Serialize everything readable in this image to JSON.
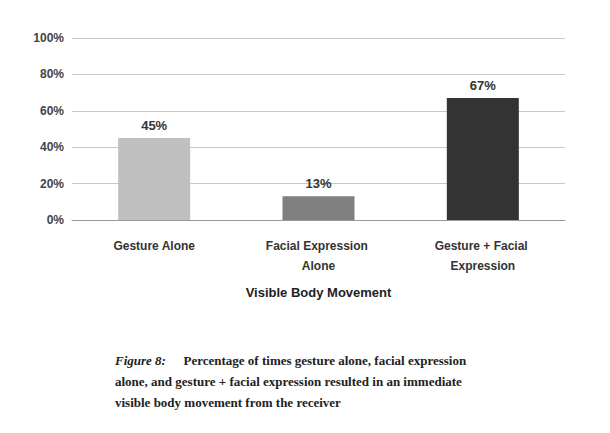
{
  "chart_data": {
    "type": "bar",
    "categories": [
      "Gesture Alone",
      "Facial Expression Alone",
      "Gesture + Facial Expression"
    ],
    "values": [
      45,
      13,
      67
    ],
    "value_labels": [
      "45%",
      "13%",
      "67%"
    ],
    "colors": [
      "#c0c0c0",
      "#808080",
      "#333333"
    ],
    "x_label": "Visible Body Movement",
    "ylim": [
      0,
      100
    ],
    "yticks": [
      {
        "value": 0,
        "label": "0%"
      },
      {
        "value": 20,
        "label": "20%"
      },
      {
        "value": 40,
        "label": "40%"
      },
      {
        "value": 60,
        "label": "60%"
      },
      {
        "value": 80,
        "label": "80%"
      },
      {
        "value": 100,
        "label": "100%"
      }
    ],
    "grid": true,
    "data_labels": true,
    "caption": {
      "label": "Figure 8:",
      "text": "Percentage of times gesture alone, facial expression alone, and gesture + facial expression resulted in an immediate visible body movement from the receiver"
    }
  }
}
